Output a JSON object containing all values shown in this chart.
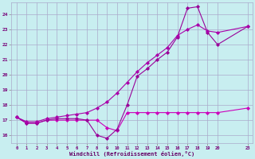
{
  "background_color": "#c8eef0",
  "grid_color": "#aaaacc",
  "line_color1": "#cc00bb",
  "line_color2": "#990099",
  "line_color3": "#aa00aa",
  "xlabel": "Windchill (Refroidissement éolien,°C)",
  "xlim": [
    -0.5,
    23.5
  ],
  "ylim": [
    15.5,
    24.8
  ],
  "yticks": [
    16,
    17,
    18,
    19,
    20,
    21,
    22,
    23,
    24
  ],
  "xticks": [
    0,
    1,
    2,
    3,
    4,
    5,
    6,
    7,
    8,
    9,
    10,
    11,
    12,
    13,
    14,
    15,
    16,
    17,
    18,
    19,
    20,
    23
  ],
  "line1_x": [
    0,
    1,
    2,
    3,
    4,
    5,
    6,
    7,
    8,
    9,
    10,
    11,
    12,
    13,
    14,
    15,
    16,
    17,
    18,
    19,
    20,
    23
  ],
  "line1_y": [
    17.2,
    16.8,
    16.8,
    17.0,
    17.0,
    17.0,
    17.0,
    17.0,
    17.0,
    16.5,
    16.3,
    17.5,
    17.5,
    17.5,
    17.5,
    17.5,
    17.5,
    17.5,
    17.5,
    17.5,
    17.5,
    17.8
  ],
  "line2_x": [
    0,
    1,
    2,
    3,
    4,
    5,
    6,
    7,
    8,
    9,
    10,
    11,
    12,
    13,
    14,
    15,
    16,
    17,
    18,
    19,
    20,
    23
  ],
  "line2_y": [
    17.2,
    16.8,
    16.8,
    17.0,
    17.1,
    17.1,
    17.1,
    17.0,
    16.0,
    15.8,
    16.4,
    18.0,
    19.9,
    20.4,
    21.0,
    21.5,
    22.5,
    24.4,
    24.5,
    22.8,
    22.0,
    23.2
  ],
  "line3_x": [
    0,
    1,
    2,
    3,
    4,
    5,
    6,
    7,
    8,
    9,
    10,
    11,
    12,
    13,
    14,
    15,
    16,
    17,
    18,
    19,
    20,
    23
  ],
  "line3_y": [
    17.2,
    16.9,
    16.9,
    17.1,
    17.2,
    17.3,
    17.4,
    17.5,
    17.8,
    18.2,
    18.8,
    19.5,
    20.2,
    20.8,
    21.3,
    21.8,
    22.6,
    23.0,
    23.3,
    22.9,
    22.8,
    23.2
  ],
  "figsize": [
    3.2,
    2.0
  ],
  "dpi": 100
}
